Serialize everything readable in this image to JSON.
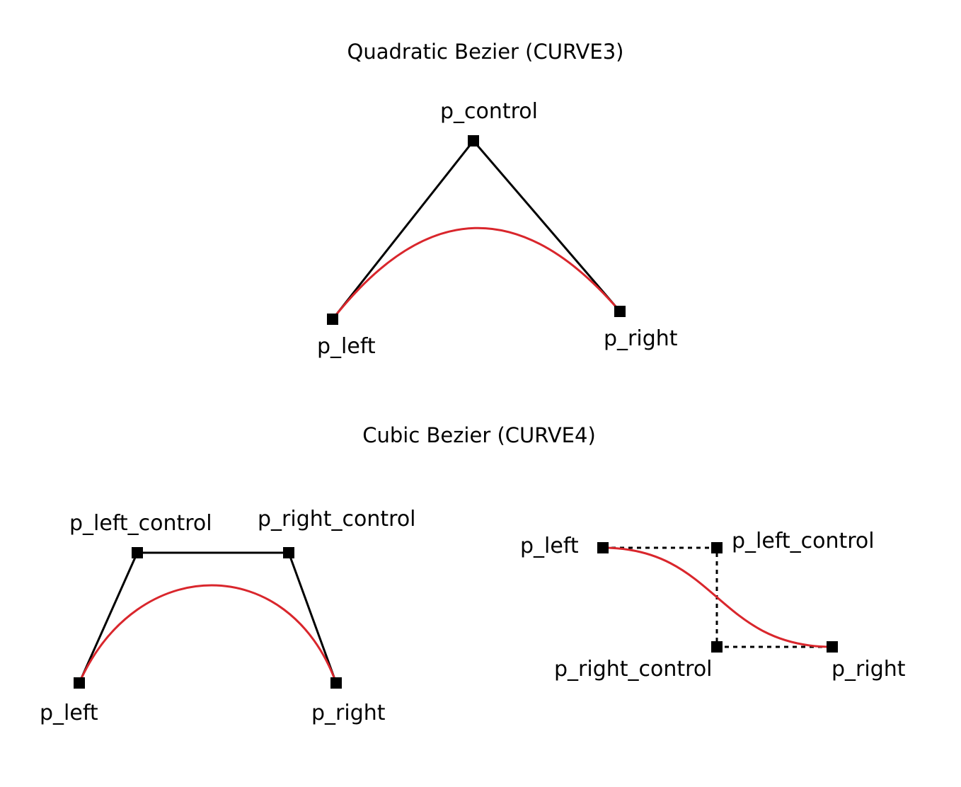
{
  "colors": {
    "curve": "#d9262c",
    "hull": "#000000",
    "point": "#000000"
  },
  "quadratic": {
    "title": "Quadratic Bezier (CURVE3)",
    "labels": {
      "p_control": "p_control",
      "p_left": "p_left",
      "p_right": "p_right"
    }
  },
  "cubic": {
    "title": "Cubic Bezier (CURVE4)",
    "arch": {
      "labels": {
        "p_left_control": "p_left_control",
        "p_right_control": "p_right_control",
        "p_left": "p_left",
        "p_right": "p_right"
      }
    },
    "scurve": {
      "labels": {
        "p_left": "p_left",
        "p_left_control": "p_left_control",
        "p_right_control": "p_right_control",
        "p_right": "p_right"
      }
    }
  }
}
